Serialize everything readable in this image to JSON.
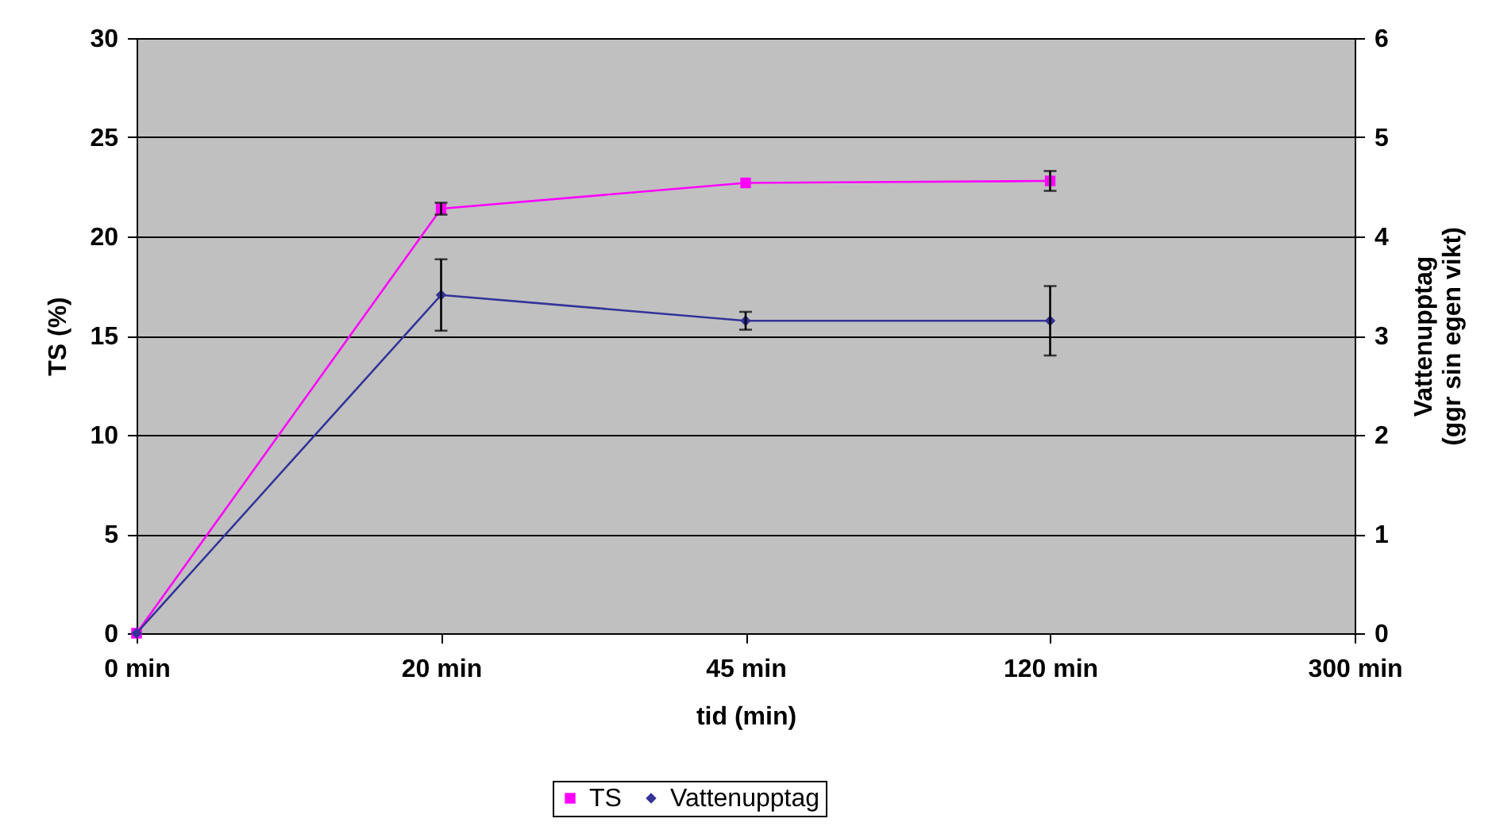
{
  "chart_data": {
    "type": "line",
    "xlabel": "tid (min)",
    "ylabel": "TS (%)",
    "y2label": "Vattenupptag\n(ggr sin egen vikt)",
    "categories": [
      "0 min",
      "20 min",
      "45 min",
      "120 min",
      "300 min"
    ],
    "series": [
      {
        "name": "TS",
        "color": "#ff00ff",
        "marker": "square",
        "values": [
          0,
          21.4,
          22.7,
          22.8,
          null
        ],
        "errors": [
          null,
          0.3,
          null,
          0.5,
          null
        ]
      },
      {
        "name": "Vattenupptag",
        "color": "#333399",
        "marker": "diamond",
        "axis": "y2",
        "values": [
          0,
          3.41,
          3.15,
          3.15,
          null
        ],
        "errors": [
          null,
          0.36,
          0.09,
          0.35,
          null
        ]
      }
    ],
    "ylim": [
      0,
      30
    ],
    "yticks": [
      0,
      5,
      10,
      15,
      20,
      25,
      30
    ],
    "y2lim": [
      0,
      6
    ],
    "y2ticks": [
      0,
      1,
      2,
      3,
      4,
      5,
      6
    ],
    "grid": "y",
    "legend": "bottom",
    "line_style": "solid"
  }
}
